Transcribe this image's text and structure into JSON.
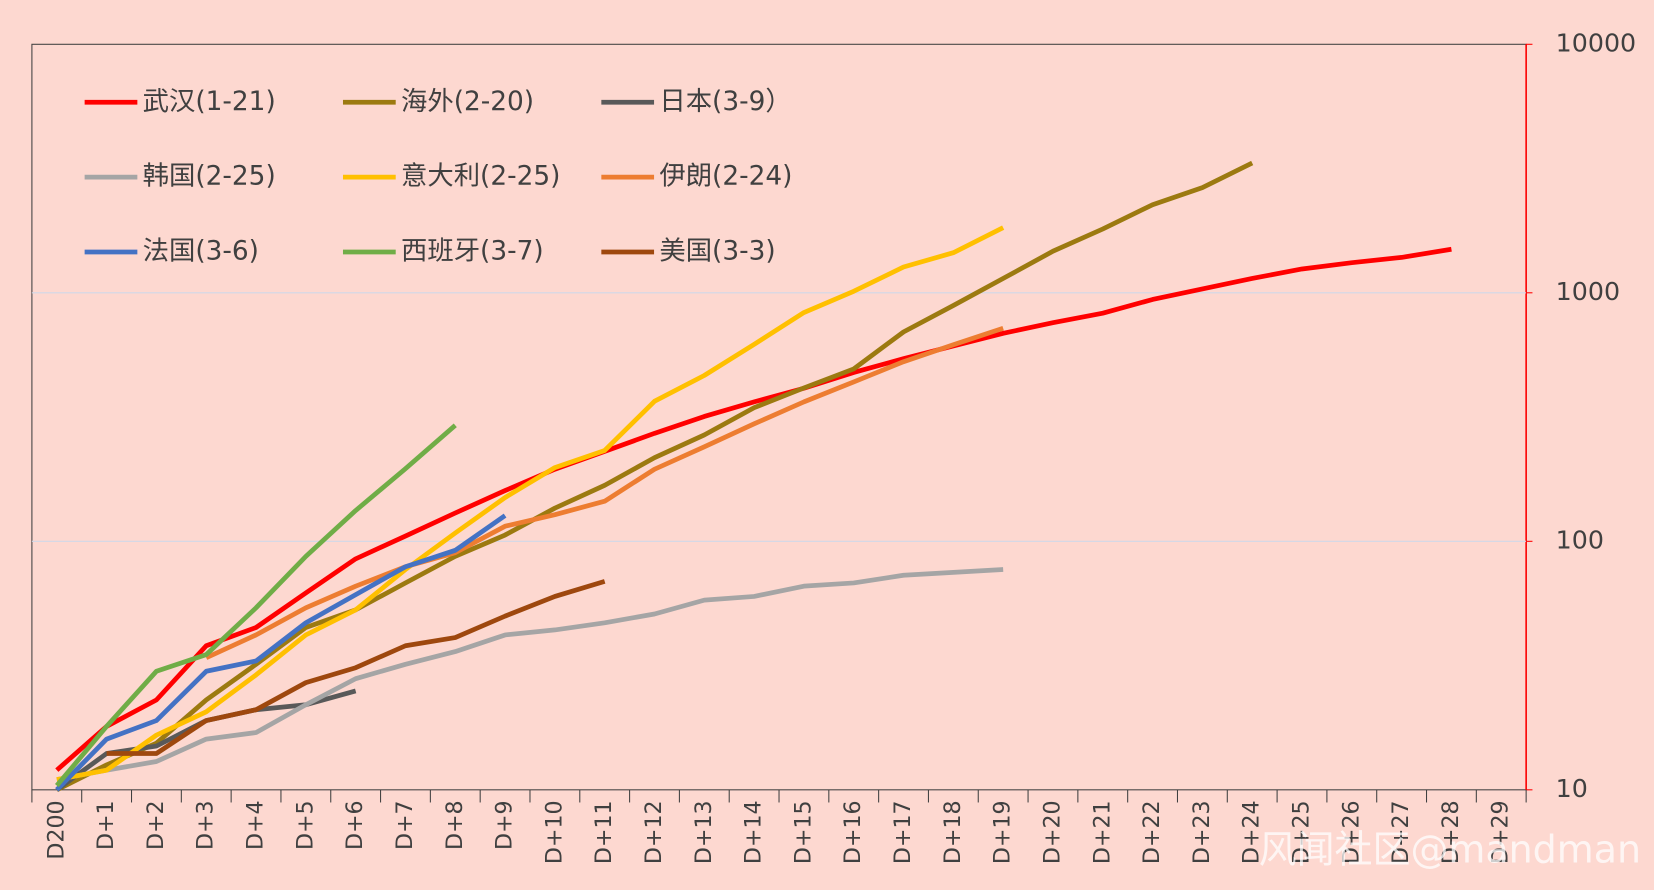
{
  "chart_data": {
    "type": "line",
    "categories": [
      "D200",
      "D+1",
      "D+2",
      "D+3",
      "D+4",
      "D+5",
      "D+6",
      "D+7",
      "D+8",
      "D+9",
      "D+10",
      "D+11",
      "D+12",
      "D+13",
      "D+14",
      "D+15",
      "D+16",
      "D+17",
      "D+18",
      "D+19",
      "D+20",
      "D+21",
      "D+22",
      "D+23",
      "D+24",
      "D+25",
      "D+26",
      "D+27",
      "D+28",
      "D+29"
    ],
    "series": [
      {
        "name": "武汉(1-21)",
        "color": "#ff0000",
        "values": [
          12,
          18,
          23,
          38,
          45,
          62,
          85,
          105,
          130,
          160,
          195,
          230,
          272,
          318,
          364,
          413,
          478,
          543,
          611,
          687,
          758,
          828,
          940,
          1036,
          1142,
          1247,
          1322,
          1388,
          1497,
          null
        ]
      },
      {
        "name": "海外(2-20)",
        "color": "#9c7a10",
        "values": [
          10,
          12.6,
          15.4,
          23,
          32,
          45,
          53,
          68,
          87,
          106,
          136,
          168,
          217,
          268,
          345,
          414,
          494,
          696,
          889,
          1142,
          1470,
          1806,
          2262,
          2650,
          3330,
          null,
          null,
          null,
          null,
          null
        ]
      },
      {
        "name": "日本(3-9）",
        "color": "#595959",
        "values": [
          10,
          14,
          15,
          19,
          21,
          22,
          25,
          null,
          null,
          null,
          null,
          null,
          null,
          null,
          null,
          null,
          null,
          null,
          null,
          null,
          null,
          null,
          null,
          null,
          null,
          null,
          null,
          null,
          null,
          null
        ]
      },
      {
        "name": "韩国(2-25)",
        "color": "#a5a5a5",
        "values": [
          11,
          12,
          13,
          16,
          17,
          22,
          28,
          32,
          36,
          42,
          44,
          47,
          51,
          58,
          60,
          66,
          68,
          73,
          75,
          77,
          null,
          null,
          null,
          null,
          null,
          null,
          null,
          null,
          null,
          null
        ]
      },
      {
        "name": "意大利(2-25)",
        "color": "#ffc000",
        "values": [
          11,
          12,
          16.6,
          20.6,
          29,
          42,
          53,
          77,
          108,
          150,
          198,
          232,
          366,
          465,
          620,
          833,
          1014,
          1270,
          1450,
          1830,
          null,
          null,
          null,
          null,
          null,
          null,
          null,
          null,
          null,
          null
        ]
      },
      {
        "name": "伊朗(2-24)",
        "color": "#ed7d31",
        "values": [
          null,
          null,
          null,
          34,
          42,
          54,
          66,
          79,
          90,
          115,
          128,
          145,
          195,
          240,
          297,
          364,
          438,
          528,
          618,
          720,
          null,
          null,
          null,
          null,
          null,
          null,
          null,
          null,
          null,
          null
        ]
      },
      {
        "name": "法国(3-6)",
        "color": "#4472c4",
        "values": [
          10,
          16,
          19,
          30,
          33,
          47,
          61,
          79,
          92,
          127,
          null,
          null,
          null,
          null,
          null,
          null,
          null,
          null,
          null,
          null,
          null,
          null,
          null,
          null,
          null,
          null,
          null,
          null,
          null,
          null
        ]
      },
      {
        "name": "西班牙(3-7)",
        "color": "#70ad47",
        "values": [
          10.4,
          18,
          30,
          35,
          54,
          87,
          133,
          196,
          293,
          null,
          null,
          null,
          null,
          null,
          null,
          null,
          null,
          null,
          null,
          null,
          null,
          null,
          null,
          null,
          null,
          null,
          null,
          null,
          null,
          null
        ]
      },
      {
        "name": "美国(3-3)",
        "color": "#9e480e",
        "values": [
          null,
          14,
          14,
          19,
          21,
          27,
          31,
          38,
          41,
          50,
          60,
          69,
          null,
          null,
          null,
          null,
          null,
          null,
          null,
          null,
          null,
          null,
          null,
          null,
          null,
          null,
          null,
          null,
          null,
          null
        ]
      }
    ],
    "ylim": [
      10,
      10000
    ],
    "yticks": [
      10,
      100,
      1000,
      10000
    ],
    "log_y": true,
    "grid": true,
    "y_axis_side": "right",
    "watermark": "风闻社区@mandman"
  }
}
